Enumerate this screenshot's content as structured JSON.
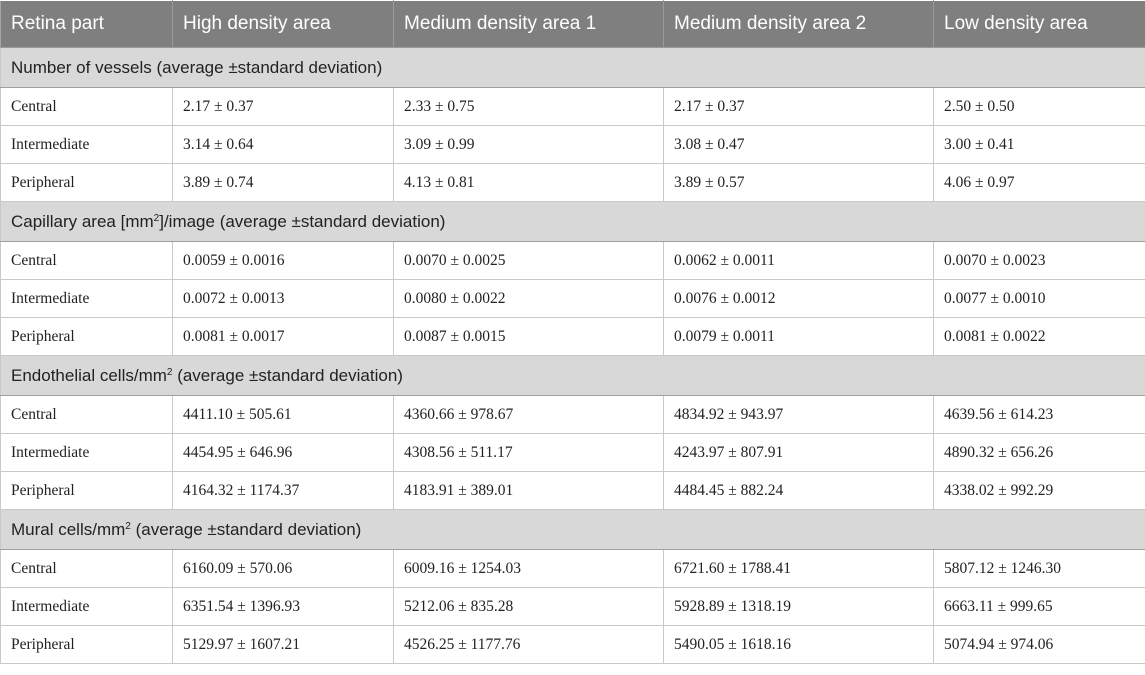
{
  "headers": [
    "Retina part",
    "High density area",
    "Medium density area 1",
    "Medium density area 2",
    "Low density area"
  ],
  "sections": [
    {
      "title_pre": "Number of vessels (average ±standard deviation)",
      "title_sup": "",
      "title_post": "",
      "rows": [
        {
          "part": "Central",
          "values": [
            "2.17 ± 0.37",
            "2.33 ± 0.75",
            "2.17 ± 0.37",
            "2.50 ± 0.50"
          ]
        },
        {
          "part": "Intermediate",
          "values": [
            "3.14 ± 0.64",
            "3.09 ± 0.99",
            "3.08 ± 0.47",
            "3.00 ± 0.41"
          ]
        },
        {
          "part": "Peripheral",
          "values": [
            "3.89 ± 0.74",
            "4.13 ± 0.81",
            "3.89 ± 0.57",
            "4.06 ± 0.97"
          ]
        }
      ]
    },
    {
      "title_pre": "Capillary area [mm",
      "title_sup": "2",
      "title_post": "]/image (average ±standard deviation)",
      "rows": [
        {
          "part": "Central",
          "values": [
            "0.0059 ± 0.0016",
            "0.0070 ± 0.0025",
            "0.0062 ± 0.0011",
            "0.0070 ± 0.0023"
          ]
        },
        {
          "part": "Intermediate",
          "values": [
            "0.0072 ± 0.0013",
            "0.0080 ± 0.0022",
            "0.0076 ± 0.0012",
            "0.0077 ± 0.0010"
          ]
        },
        {
          "part": "Peripheral",
          "values": [
            "0.0081 ± 0.0017",
            "0.0087 ± 0.0015",
            "0.0079 ± 0.0011",
            "0.0081 ± 0.0022"
          ]
        }
      ]
    },
    {
      "title_pre": "Endothelial cells/mm",
      "title_sup": "2",
      "title_post": " (average ±standard deviation)",
      "rows": [
        {
          "part": "Central",
          "values": [
            "4411.10 ± 505.61",
            "4360.66 ± 978.67",
            "4834.92 ± 943.97",
            "4639.56 ± 614.23"
          ]
        },
        {
          "part": "Intermediate",
          "values": [
            "4454.95 ± 646.96",
            "4308.56 ± 511.17",
            "4243.97 ± 807.91",
            "4890.32 ± 656.26"
          ]
        },
        {
          "part": "Peripheral",
          "values": [
            "4164.32 ± 1174.37",
            "4183.91 ± 389.01",
            "4484.45 ± 882.24",
            "4338.02 ± 992.29"
          ]
        }
      ]
    },
    {
      "title_pre": "Mural cells/mm",
      "title_sup": "2",
      "title_post": " (average ±standard deviation)",
      "rows": [
        {
          "part": "Central",
          "values": [
            "6160.09 ± 570.06",
            "6009.16 ± 1254.03",
            "6721.60 ± 1788.41",
            "5807.12 ± 1246.30"
          ]
        },
        {
          "part": "Intermediate",
          "values": [
            "6351.54 ± 1396.93",
            "5212.06 ± 835.28",
            "5928.89 ± 1318.19",
            "6663.11 ± 999.65"
          ]
        },
        {
          "part": "Peripheral",
          "values": [
            "5129.97 ± 1607.21",
            "4526.25 ± 1177.76",
            "5490.05 ± 1618.16",
            "5074.94 ± 974.06"
          ]
        }
      ]
    }
  ]
}
